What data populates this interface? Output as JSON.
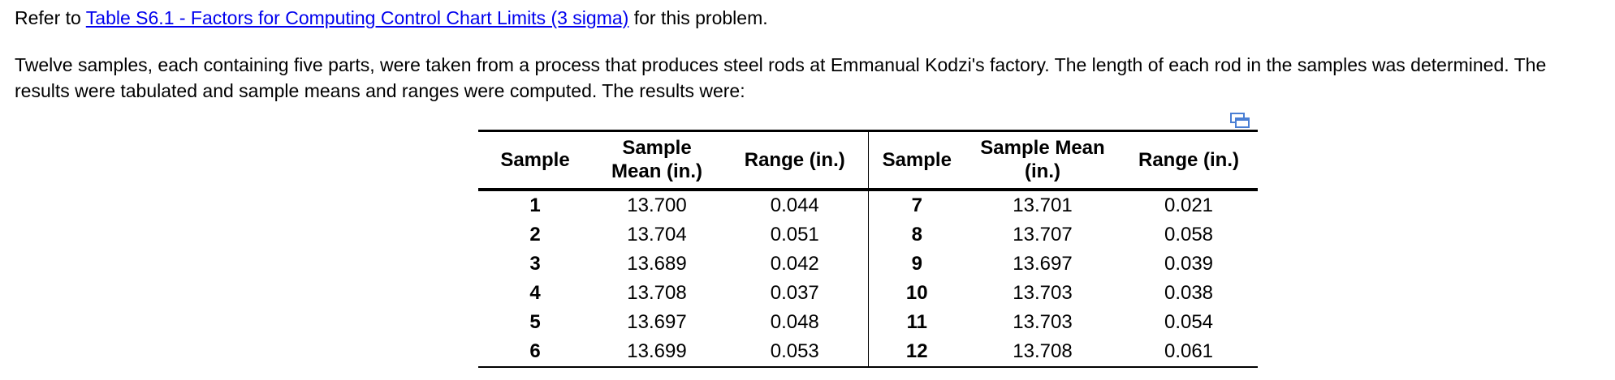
{
  "intro": {
    "prefix": "Refer to ",
    "link_text": "Table S6.1 - Factors for Computing Control Chart Limits (3 sigma)",
    "suffix": " for this problem."
  },
  "paragraph": "Twelve samples, each containing five parts, were taken from a process that produces steel rods at Emmanual Kodzi's factory. The length of each rod in the samples was determined. The results were tabulated and sample means and ranges were computed. The results were:",
  "table": {
    "headers": {
      "sample_left": "Sample",
      "mean_left_line1": "Sample",
      "mean_left_line2": "Mean (in.)",
      "range_left": "Range (in.)",
      "sample_right": "Sample",
      "mean_right": "Sample Mean (in.)",
      "range_right": "Range (in.)"
    },
    "rows": [
      {
        "s1": "1",
        "m1": "13.700",
        "r1": "0.044",
        "s2": "7",
        "m2": "13.701",
        "r2": "0.021"
      },
      {
        "s1": "2",
        "m1": "13.704",
        "r1": "0.051",
        "s2": "8",
        "m2": "13.707",
        "r2": "0.058"
      },
      {
        "s1": "3",
        "m1": "13.689",
        "r1": "0.042",
        "s2": "9",
        "m2": "13.697",
        "r2": "0.039"
      },
      {
        "s1": "4",
        "m1": "13.708",
        "r1": "0.037",
        "s2": "10",
        "m2": "13.703",
        "r2": "0.038"
      },
      {
        "s1": "5",
        "m1": "13.697",
        "r1": "0.048",
        "s2": "11",
        "m2": "13.703",
        "r2": "0.054"
      },
      {
        "s1": "6",
        "m1": "13.699",
        "r1": "0.053",
        "s2": "12",
        "m2": "13.708",
        "r2": "0.061"
      }
    ]
  },
  "icons": {
    "copy": "copy-icon"
  },
  "colors": {
    "link": "#0000ee",
    "icon": "#4a7fd4"
  }
}
